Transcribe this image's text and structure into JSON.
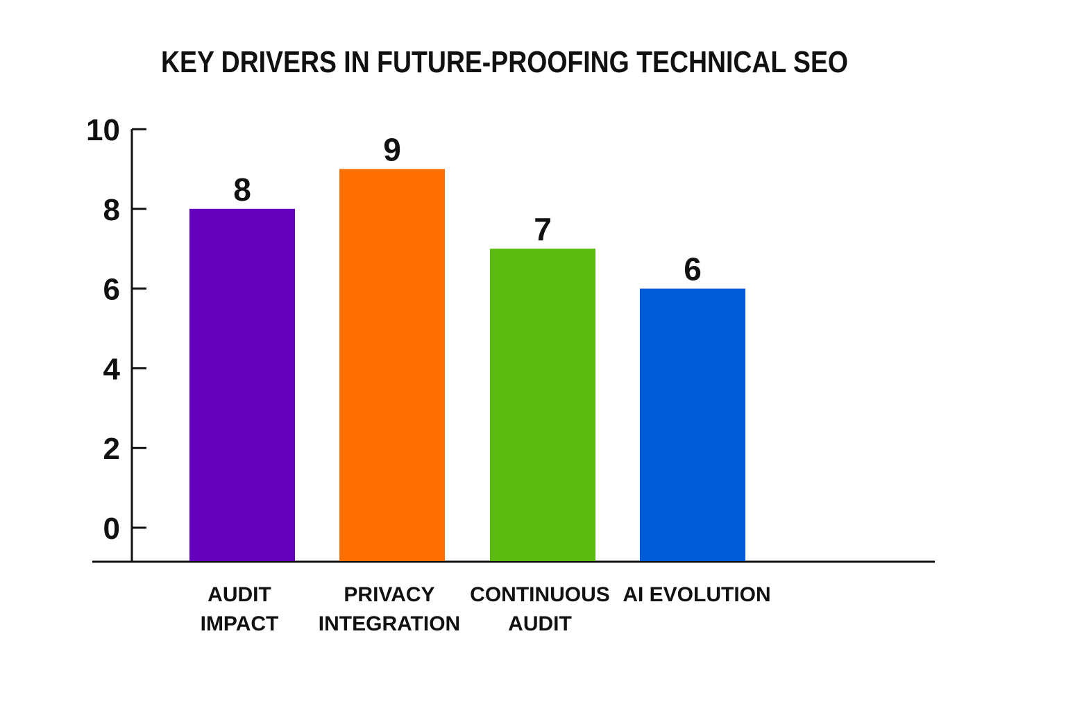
{
  "chart_data": {
    "type": "bar",
    "title": "KEY DRIVERS IN FUTURE-PROOFING TECHNICAL SEO",
    "xlabel": "",
    "ylabel": "",
    "categories": [
      [
        "AUDIT",
        "IMPACT"
      ],
      [
        "PRIVACY",
        "INTEGRATION"
      ],
      [
        "CONTINUOUS",
        "AUDIT"
      ],
      [
        "AI EVOLUTION"
      ]
    ],
    "values": [
      8,
      9,
      7,
      6
    ],
    "data_labels": [
      "8",
      "9",
      "7",
      "6"
    ],
    "colors": [
      "#6600BF",
      "#FF6F00",
      "#5CBB10",
      "#005CD9"
    ],
    "ylim": [
      0,
      10
    ],
    "yticks": [
      "0",
      "2",
      "4",
      "6",
      "8",
      "10"
    ],
    "grid": false,
    "legend": "none"
  }
}
